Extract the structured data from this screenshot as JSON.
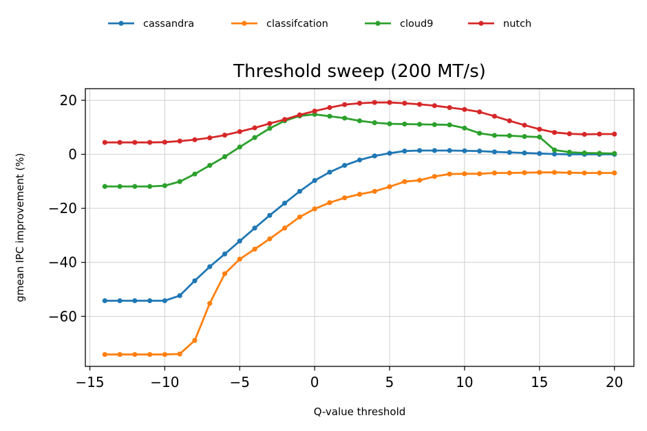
{
  "chart_data": {
    "type": "line",
    "title": "Threshold sweep (200 MT/s)",
    "xlabel": "Q-value threshold",
    "ylabel": "gmean IPC improvement (%)",
    "xlim": [
      -15.3,
      21.3
    ],
    "ylim": [
      -78.5,
      24.3
    ],
    "xticks": [
      -15,
      -10,
      -5,
      0,
      5,
      10,
      15,
      20
    ],
    "xtick_labels": [
      "−15",
      "−10",
      "−5",
      "0",
      "5",
      "10",
      "15",
      "20"
    ],
    "yticks": [
      -60,
      -40,
      -20,
      0,
      20
    ],
    "ytick_labels": [
      "−60",
      "−40",
      "−20",
      "0",
      "20"
    ],
    "grid": true,
    "legend_position": "top-center",
    "x": [
      -14,
      -13,
      -12,
      -11,
      -10,
      -9,
      -8,
      -7,
      -6,
      -5,
      -4,
      -3,
      -2,
      -1,
      0,
      1,
      2,
      3,
      4,
      5,
      6,
      7,
      8,
      9,
      10,
      11,
      12,
      13,
      14,
      15,
      16,
      17,
      18,
      19,
      20
    ],
    "series": [
      {
        "name": "cassandra",
        "color": "#1f77b4",
        "values": [
          -54.2,
          -54.2,
          -54.2,
          -54.2,
          -54.2,
          -52.3,
          -46.8,
          -41.6,
          -36.9,
          -32.1,
          -27.3,
          -22.6,
          -18.1,
          -13.7,
          -9.7,
          -6.6,
          -4.1,
          -2.1,
          -0.6,
          0.4,
          1.2,
          1.4,
          1.4,
          1.4,
          1.3,
          1.2,
          0.9,
          0.7,
          0.5,
          0.3,
          0.1,
          0.0,
          0.0,
          0.0,
          0.0
        ]
      },
      {
        "name": "classifcation",
        "color": "#ff7f0e",
        "values": [
          -74.1,
          -74.1,
          -74.1,
          -74.1,
          -74.1,
          -73.9,
          -68.9,
          -55.2,
          -44.2,
          -38.8,
          -35.1,
          -31.3,
          -27.3,
          -23.2,
          -20.2,
          -17.9,
          -16.1,
          -14.8,
          -13.7,
          -12.0,
          -10.1,
          -9.6,
          -8.2,
          -7.3,
          -7.2,
          -7.2,
          -6.9,
          -6.9,
          -6.8,
          -6.7,
          -6.7,
          -6.8,
          -6.9,
          -6.9,
          -6.9
        ]
      },
      {
        "name": "cloud9",
        "color": "#2ca02c",
        "values": [
          -11.9,
          -11.9,
          -11.9,
          -11.9,
          -11.6,
          -10.1,
          -7.3,
          -4.1,
          -0.9,
          2.7,
          6.2,
          9.6,
          12.4,
          14.2,
          14.8,
          14.1,
          13.4,
          12.4,
          11.7,
          11.3,
          11.2,
          11.1,
          11.0,
          10.9,
          9.7,
          7.8,
          7.0,
          6.9,
          6.6,
          6.4,
          1.6,
          0.8,
          0.5,
          0.4,
          0.3
        ]
      },
      {
        "name": "nutch",
        "color": "#d62728",
        "values": [
          4.4,
          4.4,
          4.4,
          4.4,
          4.5,
          4.9,
          5.4,
          6.1,
          7.1,
          8.4,
          9.8,
          11.4,
          12.9,
          14.6,
          16.0,
          17.3,
          18.4,
          18.9,
          19.2,
          19.2,
          18.9,
          18.5,
          18.0,
          17.3,
          16.6,
          15.7,
          14.1,
          12.4,
          10.8,
          9.3,
          8.1,
          7.6,
          7.4,
          7.5,
          7.5
        ]
      }
    ]
  }
}
